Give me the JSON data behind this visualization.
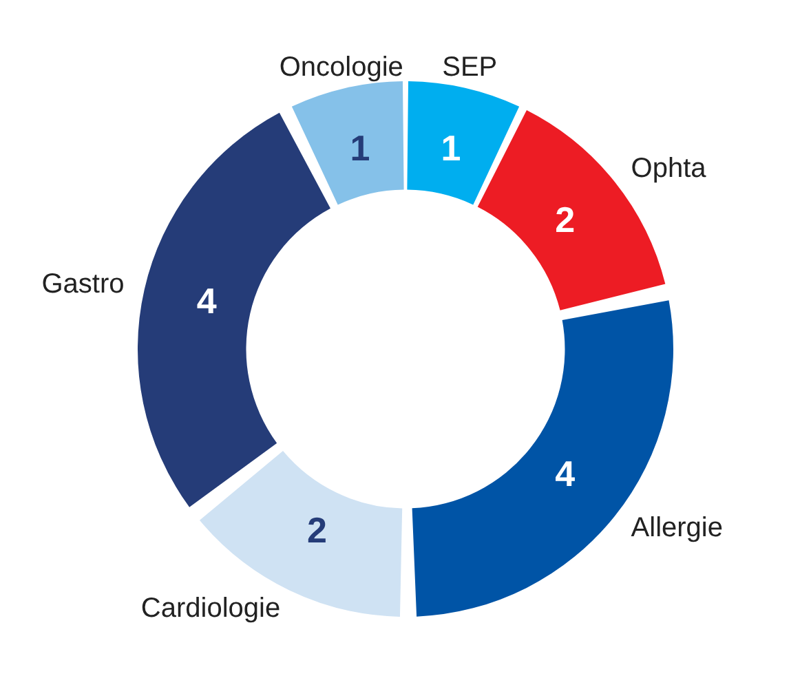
{
  "chart_data": {
    "type": "donut",
    "categories": [
      "SEP",
      "Ophta",
      "Allergie",
      "Cardiologie",
      "Gastro",
      "Oncologie"
    ],
    "values": [
      1,
      2,
      4,
      2,
      4,
      1
    ],
    "colors": [
      "#00aeef",
      "#ed1c24",
      "#0054a6",
      "#cfe2f3",
      "#253c78",
      "#85c1e9"
    ],
    "data_labels": true,
    "legend": false
  }
}
